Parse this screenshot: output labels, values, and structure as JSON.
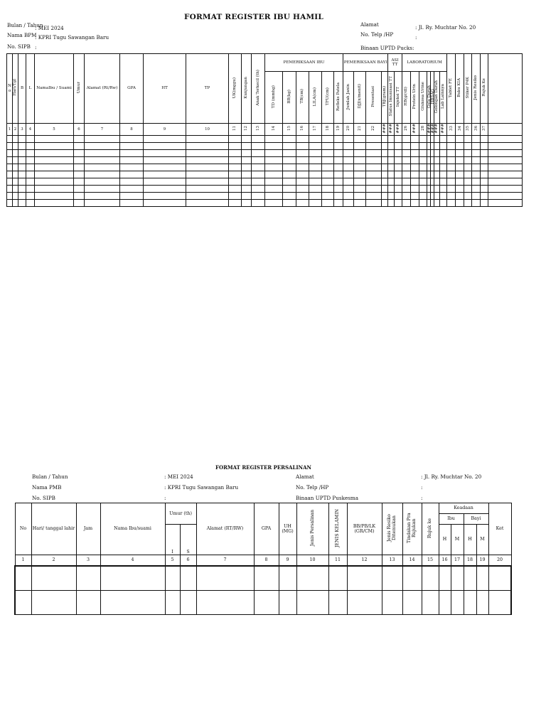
{
  "ibu_hamil": {
    "title": "FORMAT REGISTER IBU HAMIL",
    "left_meta": [
      {
        "label": "Bulan / Tahun",
        "value": ": MEI 2024"
      },
      {
        "label": "Nama BPM",
        "value": ": KPRI Tugu Sawangan Baru"
      },
      {
        "label": "No. SIPB",
        "value": ":"
      }
    ],
    "right_meta": [
      {
        "label": "Alamat",
        "value": ": Jl. Ry. Muchtar No. 20"
      },
      {
        "label": "No. Telp /HP",
        "value": ":"
      },
      {
        "label": "Binaan UPTD Pucks:",
        "value": ""
      }
    ],
    "groups": [
      "PEMERIKSAAN IBU",
      "PEMERIKSAAN BAYI",
      "ASI TT",
      "LABORATORIUM"
    ],
    "columns": [
      {
        "label": "N o",
        "num": "1"
      },
      {
        "label": "Hari/Tgl",
        "num": "2"
      },
      {
        "label": "B",
        "num": "3"
      },
      {
        "label": "L",
        "num": "4"
      },
      {
        "label": "NamaIbu / Suami",
        "num": "5"
      },
      {
        "label": "Umur",
        "num": "6"
      },
      {
        "label": "Alamat (Rt/Rw)",
        "num": "7"
      },
      {
        "label": "GPA",
        "num": "8"
      },
      {
        "label": "HT",
        "num": "9"
      },
      {
        "label": "TP",
        "num": "10"
      },
      {
        "label": "UK(mggu)",
        "num": "11"
      },
      {
        "label": "Kunjungan",
        "num": "12"
      },
      {
        "label": "Anak Terkecil (th)",
        "num": "13"
      },
      {
        "label": "TD (mmhg)",
        "num": "14"
      },
      {
        "label": "BB(kg)",
        "num": "15"
      },
      {
        "label": "TB(cm)",
        "num": "16"
      },
      {
        "label": "LILA(cm)",
        "num": "17"
      },
      {
        "label": "TFU(cm)",
        "num": "18"
      },
      {
        "label": "Refleks Patela",
        "num": "19"
      },
      {
        "label": "Jumlah Janin",
        "num": "20"
      },
      {
        "label": "DJJ(x/menit)",
        "num": "21"
      },
      {
        "label": "Presentasi",
        "num": "22"
      },
      {
        "label": "TBJ(gram)",
        "num": "###"
      },
      {
        "label": "Status Imunisasi TT",
        "num": "###"
      },
      {
        "label": "Injeksi TT",
        "num": "###"
      },
      {
        "label": "HB(gr/dl)",
        "num": "26"
      },
      {
        "label": "Protein Urin",
        "num": "###"
      },
      {
        "label": "Glukosa Urine",
        "num": "28"
      },
      {
        "label": "Gula Darah",
        "num": "###"
      },
      {
        "label": "HBSAG",
        "num": "###"
      },
      {
        "label": "Golongan Darah",
        "num": "###"
      },
      {
        "label": "Lab Lainnya",
        "num": "###"
      },
      {
        "label": "Tablet FE",
        "num": "33"
      },
      {
        "label": "Buku KIA",
        "num": "34"
      },
      {
        "label": "Stiker P4K",
        "num": "35"
      },
      {
        "label": "Jenis Resiko",
        "num": "36"
      },
      {
        "label": "Rujuk Ke",
        "num": "37"
      },
      {
        "label": "",
        "num": ""
      }
    ]
  },
  "persalinan": {
    "title": "FORMAT REGISTER PERSALINAN",
    "left_meta": [
      {
        "label": "Bulan / Tahun",
        "value": ": MEI 2024"
      },
      {
        "label": "Nama PMB",
        "value": ": KPRI Tugu Sawangan Baru"
      },
      {
        "label": "No. SIPB",
        "value": ":"
      }
    ],
    "right_meta": [
      {
        "label": "Alamat",
        "value": ": Jl. Ry. Muchtar No. 20"
      },
      {
        "label": "No. Telp /HP",
        "value": ":"
      },
      {
        "label": "Binaan UPTD Puskesma",
        "value": ":"
      }
    ],
    "headers": {
      "no": "No",
      "hari": "Hari/ tanggal lahir",
      "jam": "Jam",
      "nama": "Nama Ibu/suami",
      "umur": "Umur (th)",
      "umur_i": "I",
      "umur_s": "S",
      "alamat": "Alamat (RT/RW)",
      "gpa": "GPA",
      "uh": "UH (MG)",
      "jenis_persalinan": "Jenis Persalinan",
      "jenis_kelamin": "JENIS KELAMIN",
      "bb": "BB/PB/LK (GR/CM)",
      "resiko": "Jenis Resiko Ditemukan",
      "tindakan": "Tindakan Pra Rujukan",
      "rujuk": "Rujuk ke",
      "keadaan": "Keadaan",
      "ibu": "Ibu",
      "bayi": "Bayi",
      "ibu_h": "H",
      "ibu_m": "M",
      "bayi_h": "H",
      "bayi_m": "M",
      "ket": "Ket"
    },
    "numbers": [
      "1",
      "2",
      "3",
      "4",
      "5",
      "6",
      "7",
      "8",
      "9",
      "10",
      "11",
      "12",
      "13",
      "14",
      "15",
      "16",
      "17",
      "18",
      "19",
      "20"
    ]
  }
}
